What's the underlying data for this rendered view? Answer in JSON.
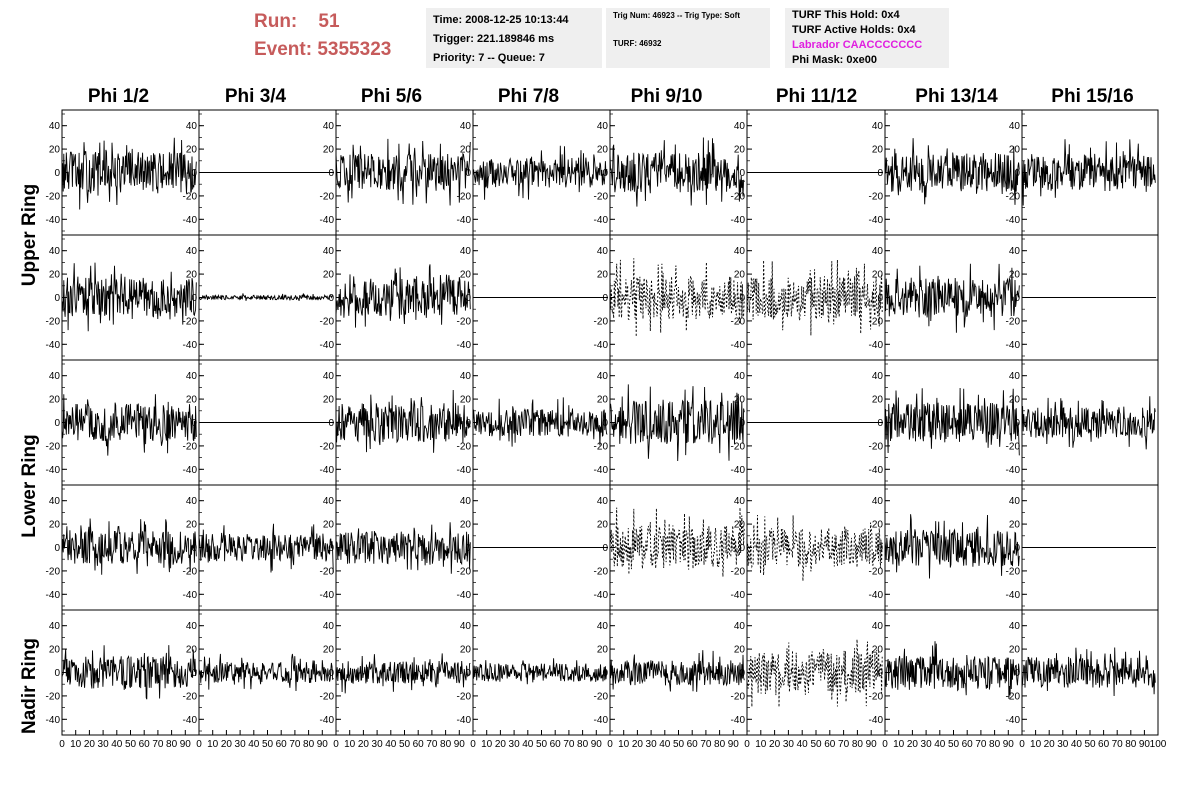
{
  "header": {
    "run_label": "Run:",
    "run_value": "51",
    "event_label": "Event:",
    "event_value": "5355323",
    "time_box": {
      "line1": "Time: 2008-12-25 10:13:44",
      "line2": "Trigger: 221.189846 ms",
      "line3": "Priority: 7 -- Queue: 7"
    },
    "trig_box": {
      "line1": "Trig Num: 46923 -- Trig Type: Soft",
      "line2": "TURF: 46932"
    },
    "turf_box": {
      "line1": "TURF This Hold: 0x4",
      "line2": "TURF Active Holds: 0x4",
      "line3": "Labrador CAACCCCCCC",
      "line4": "Phi Mask: 0xe00"
    }
  },
  "columns": [
    "Phi 1/2",
    "Phi 3/4",
    "Phi 5/6",
    "Phi 7/8",
    "Phi 9/10",
    "Phi 11/12",
    "Phi 13/14",
    "Phi 15/16"
  ],
  "rings": [
    "Upper Ring",
    "Lower Ring",
    "Nadir Ring"
  ],
  "chart_data": {
    "type": "line",
    "grid": false,
    "xlim": [
      0,
      100
    ],
    "ylim": [
      -50,
      50
    ],
    "x_ticks": [
      0,
      10,
      20,
      30,
      40,
      50,
      60,
      70,
      80,
      90,
      100
    ],
    "y_ticks": [
      -40,
      -20,
      0,
      20,
      40
    ],
    "note_rows": "5 rows of waveform panels: 2 Upper Ring, 2 Lower Ring, 1 Nadir Ring",
    "panels": [
      {
        "row": 0,
        "col": 0,
        "style": "noise",
        "amp": 18,
        "dashed": false
      },
      {
        "row": 0,
        "col": 1,
        "style": "flat",
        "amp": 0,
        "dashed": false
      },
      {
        "row": 0,
        "col": 2,
        "style": "noise",
        "amp": 16,
        "dashed": false
      },
      {
        "row": 0,
        "col": 3,
        "style": "noise",
        "amp": 13,
        "dashed": false
      },
      {
        "row": 0,
        "col": 4,
        "style": "noise",
        "amp": 17,
        "dashed": false
      },
      {
        "row": 0,
        "col": 5,
        "style": "flat",
        "amp": 0,
        "dashed": false
      },
      {
        "row": 0,
        "col": 6,
        "style": "noise",
        "amp": 17,
        "dashed": false
      },
      {
        "row": 0,
        "col": 7,
        "style": "noise",
        "amp": 16,
        "dashed": false
      },
      {
        "row": 1,
        "col": 0,
        "style": "noise",
        "amp": 17,
        "dashed": false
      },
      {
        "row": 1,
        "col": 1,
        "style": "noise",
        "amp": 2,
        "dashed": false
      },
      {
        "row": 1,
        "col": 2,
        "style": "noise",
        "amp": 16,
        "dashed": false
      },
      {
        "row": 1,
        "col": 3,
        "style": "flat",
        "amp": 0,
        "dashed": false
      },
      {
        "row": 1,
        "col": 4,
        "style": "noise",
        "amp": 19,
        "dashed": true
      },
      {
        "row": 1,
        "col": 5,
        "style": "noise",
        "amp": 19,
        "dashed": true
      },
      {
        "row": 1,
        "col": 6,
        "style": "noise",
        "amp": 17,
        "dashed": false
      },
      {
        "row": 1,
        "col": 7,
        "style": "flat",
        "amp": 0,
        "dashed": false
      },
      {
        "row": 2,
        "col": 0,
        "style": "noise",
        "amp": 16,
        "dashed": false
      },
      {
        "row": 2,
        "col": 1,
        "style": "flat",
        "amp": 0,
        "dashed": false
      },
      {
        "row": 2,
        "col": 2,
        "style": "noise",
        "amp": 17,
        "dashed": false
      },
      {
        "row": 2,
        "col": 3,
        "style": "noise",
        "amp": 12,
        "dashed": false
      },
      {
        "row": 2,
        "col": 4,
        "style": "noise",
        "amp": 19,
        "dashed": false
      },
      {
        "row": 2,
        "col": 5,
        "style": "flat",
        "amp": 0,
        "dashed": false
      },
      {
        "row": 2,
        "col": 6,
        "style": "noise",
        "amp": 17,
        "dashed": false
      },
      {
        "row": 2,
        "col": 7,
        "style": "noise",
        "amp": 13,
        "dashed": false
      },
      {
        "row": 3,
        "col": 0,
        "style": "noise",
        "amp": 14,
        "dashed": false
      },
      {
        "row": 3,
        "col": 1,
        "style": "noise",
        "amp": 12,
        "dashed": false
      },
      {
        "row": 3,
        "col": 2,
        "style": "noise",
        "amp": 14,
        "dashed": false
      },
      {
        "row": 3,
        "col": 3,
        "style": "flat",
        "amp": 0,
        "dashed": false
      },
      {
        "row": 3,
        "col": 4,
        "style": "noise",
        "amp": 19,
        "dashed": true
      },
      {
        "row": 3,
        "col": 5,
        "style": "noise",
        "amp": 17,
        "dashed": true
      },
      {
        "row": 3,
        "col": 6,
        "style": "noise",
        "amp": 16,
        "dashed": false
      },
      {
        "row": 3,
        "col": 7,
        "style": "flat",
        "amp": 0,
        "dashed": false
      },
      {
        "row": 4,
        "col": 0,
        "style": "noise",
        "amp": 14,
        "dashed": false
      },
      {
        "row": 4,
        "col": 1,
        "style": "noise",
        "amp": 9,
        "dashed": false
      },
      {
        "row": 4,
        "col": 2,
        "style": "noise",
        "amp": 10,
        "dashed": false
      },
      {
        "row": 4,
        "col": 3,
        "style": "noise",
        "amp": 8,
        "dashed": false
      },
      {
        "row": 4,
        "col": 4,
        "style": "noise",
        "amp": 11,
        "dashed": false
      },
      {
        "row": 4,
        "col": 5,
        "style": "noise",
        "amp": 19,
        "dashed": true
      },
      {
        "row": 4,
        "col": 6,
        "style": "noise",
        "amp": 15,
        "dashed": false
      },
      {
        "row": 4,
        "col": 7,
        "style": "noise",
        "amp": 13,
        "dashed": false
      }
    ]
  }
}
